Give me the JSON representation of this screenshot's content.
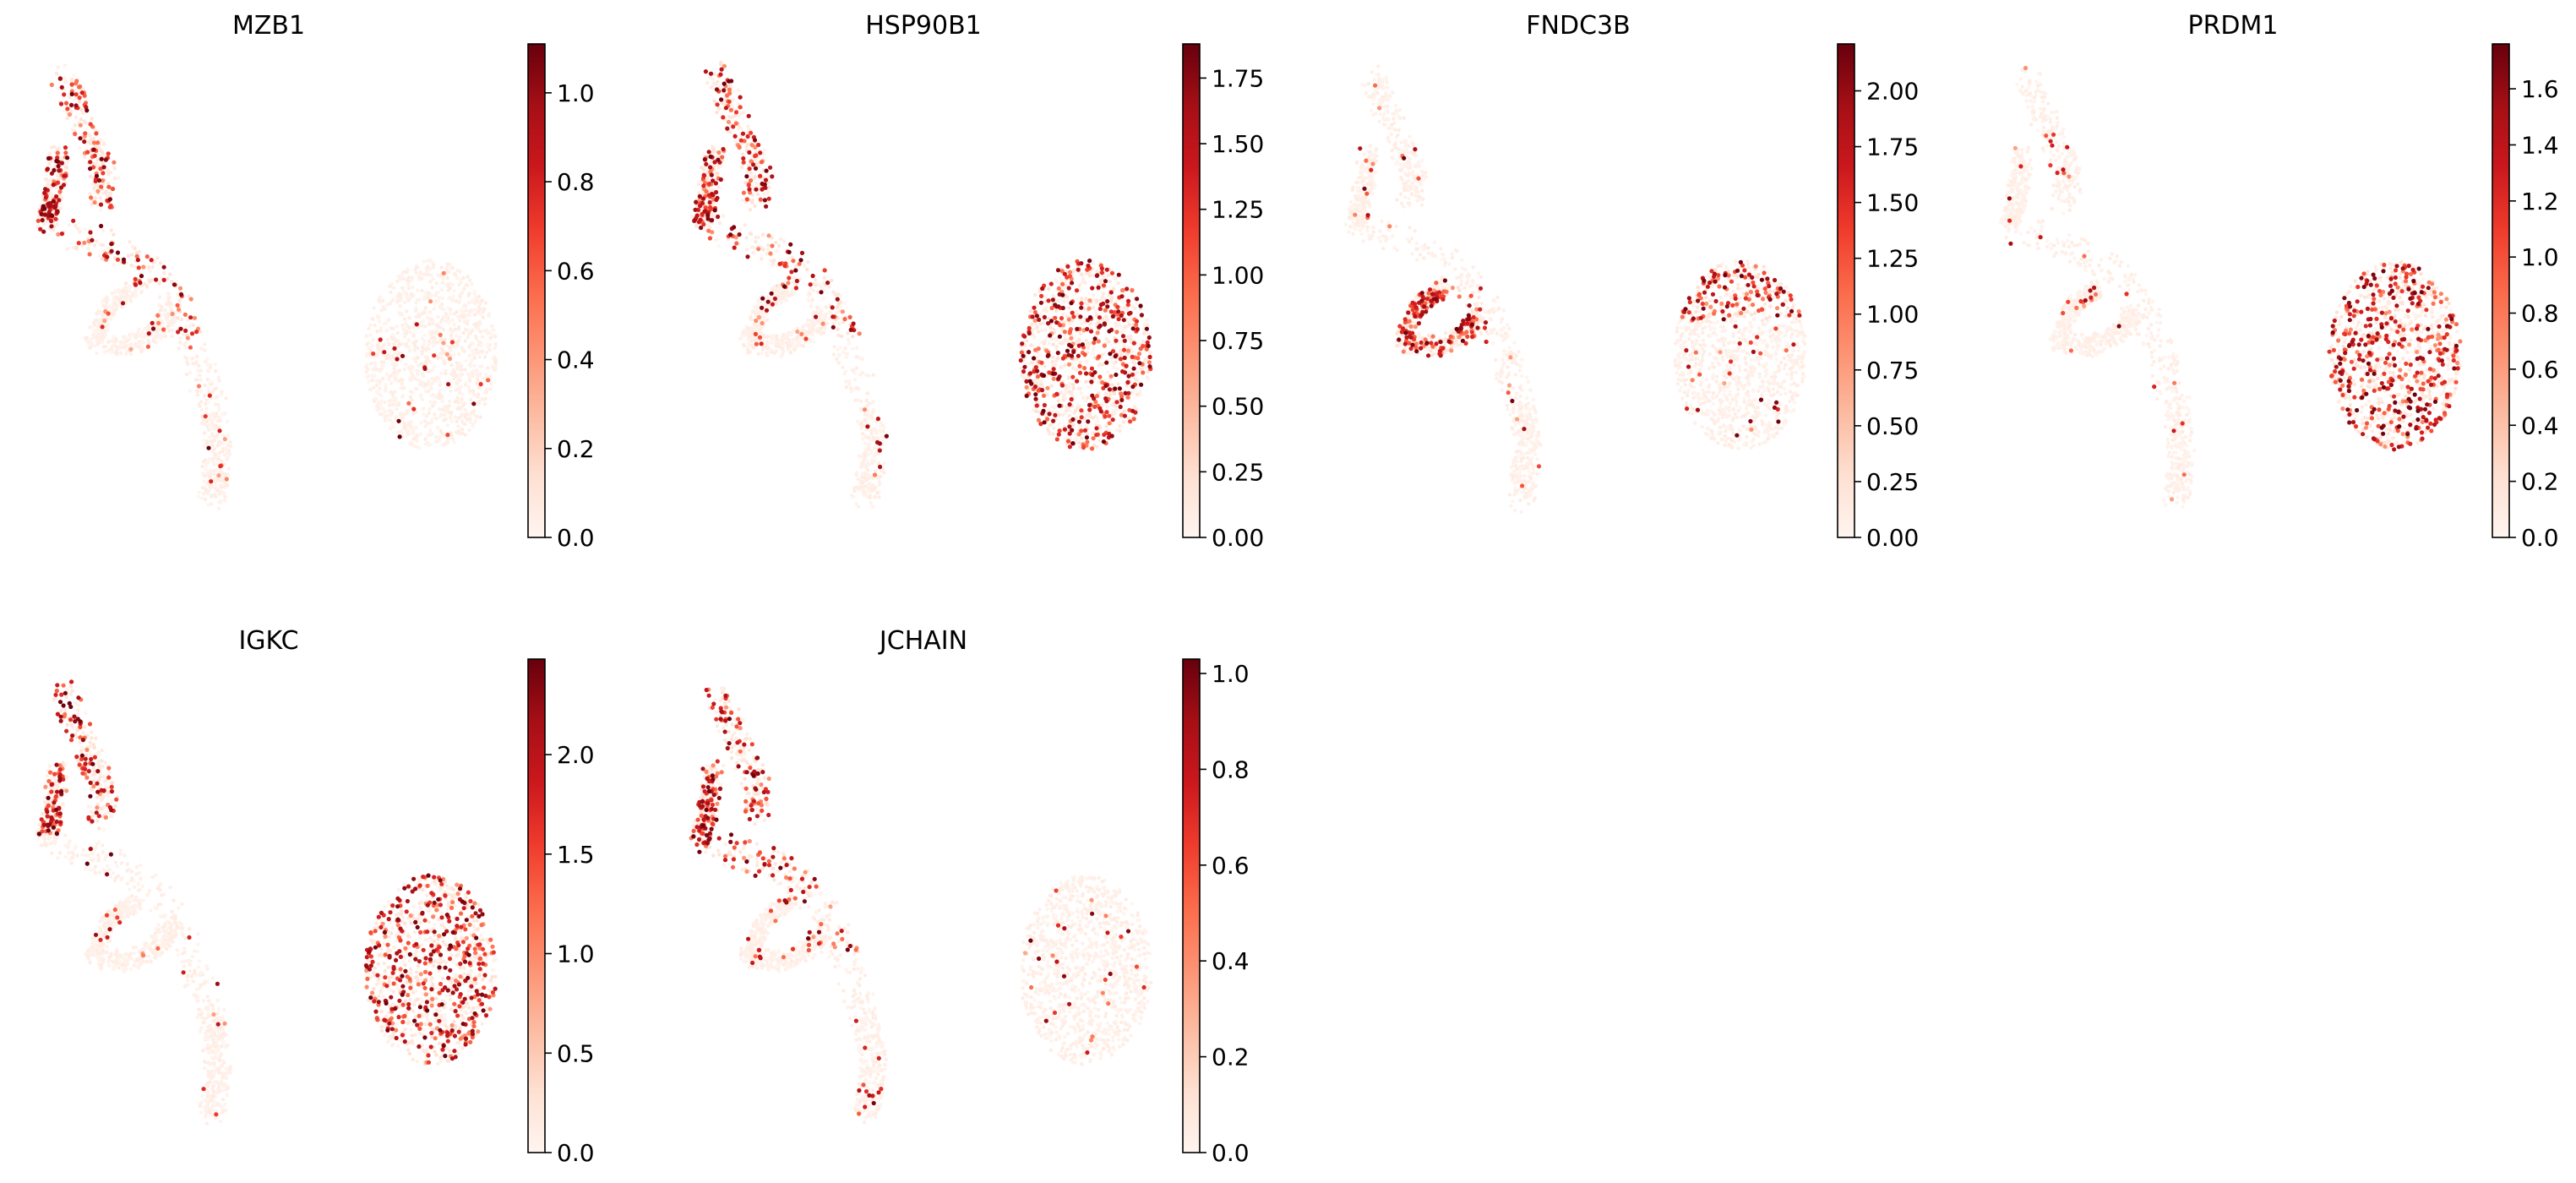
{
  "figure": {
    "colormap": "Reds",
    "colormap_stops": [
      "#fff5f0",
      "#fee0d2",
      "#fcbba1",
      "#fc9272",
      "#fb6a4a",
      "#ef3b2c",
      "#cb181d",
      "#a50f15",
      "#67000d"
    ]
  },
  "chart_data": [
    {
      "type": "scatter",
      "title": "MZB1",
      "xlabel": "",
      "ylabel": "",
      "grid": false,
      "colorbar": {
        "vmin": 0.0,
        "vmax": 1.11,
        "ticks": [
          "0.0",
          "0.2",
          "0.4",
          "0.6",
          "0.8",
          "1.0"
        ]
      },
      "hotspots": [
        "upper-left arm",
        "left branch mid"
      ],
      "values_description_note": ""
    },
    {
      "type": "scatter",
      "title": "HSP90B1",
      "xlabel": "",
      "ylabel": "",
      "grid": false,
      "colorbar": {
        "vmin": 0.0,
        "vmax": 1.88,
        "ticks": [
          "0.00",
          "0.25",
          "0.50",
          "0.75",
          "1.00",
          "1.25",
          "1.50",
          "1.75"
        ]
      },
      "hotspots": [
        "right cluster",
        "left branch mid",
        "upper-left arm"
      ],
      "values_description_note": ""
    },
    {
      "type": "scatter",
      "title": "FNDC3B",
      "xlabel": "",
      "ylabel": "",
      "grid": false,
      "colorbar": {
        "vmin": 0.0,
        "vmax": 2.21,
        "ticks": [
          "0.00",
          "0.25",
          "0.50",
          "0.75",
          "1.00",
          "1.25",
          "1.50",
          "1.75",
          "2.00"
        ]
      },
      "hotspots": [
        "left branch lower loop",
        "right cluster top"
      ],
      "values_description_note": ""
    },
    {
      "type": "scatter",
      "title": "PRDM1",
      "xlabel": "",
      "ylabel": "",
      "grid": false,
      "colorbar": {
        "vmin": 0.0,
        "vmax": 1.76,
        "ticks": [
          "0.0",
          "0.2",
          "0.4",
          "0.6",
          "0.8",
          "1.0",
          "1.2",
          "1.4",
          "1.6"
        ]
      },
      "hotspots": [
        "right cluster"
      ],
      "values_description_note": ""
    },
    {
      "type": "scatter",
      "title": "IGKC",
      "xlabel": "",
      "ylabel": "",
      "grid": false,
      "colorbar": {
        "vmin": 0.0,
        "vmax": 2.48,
        "ticks": [
          "0.0",
          "0.5",
          "1.0",
          "1.5",
          "2.0"
        ]
      },
      "hotspots": [
        "upper-left arm",
        "right cluster"
      ],
      "values_description_note": ""
    },
    {
      "type": "scatter",
      "title": "JCHAIN",
      "xlabel": "",
      "ylabel": "",
      "grid": false,
      "colorbar": {
        "vmin": 0.0,
        "vmax": 1.03,
        "ticks": [
          "0.0",
          "0.2",
          "0.4",
          "0.6",
          "0.8",
          "1.0"
        ]
      },
      "hotspots": [
        "upper-left arm",
        "left branch mid"
      ],
      "values_description_note": ""
    }
  ]
}
